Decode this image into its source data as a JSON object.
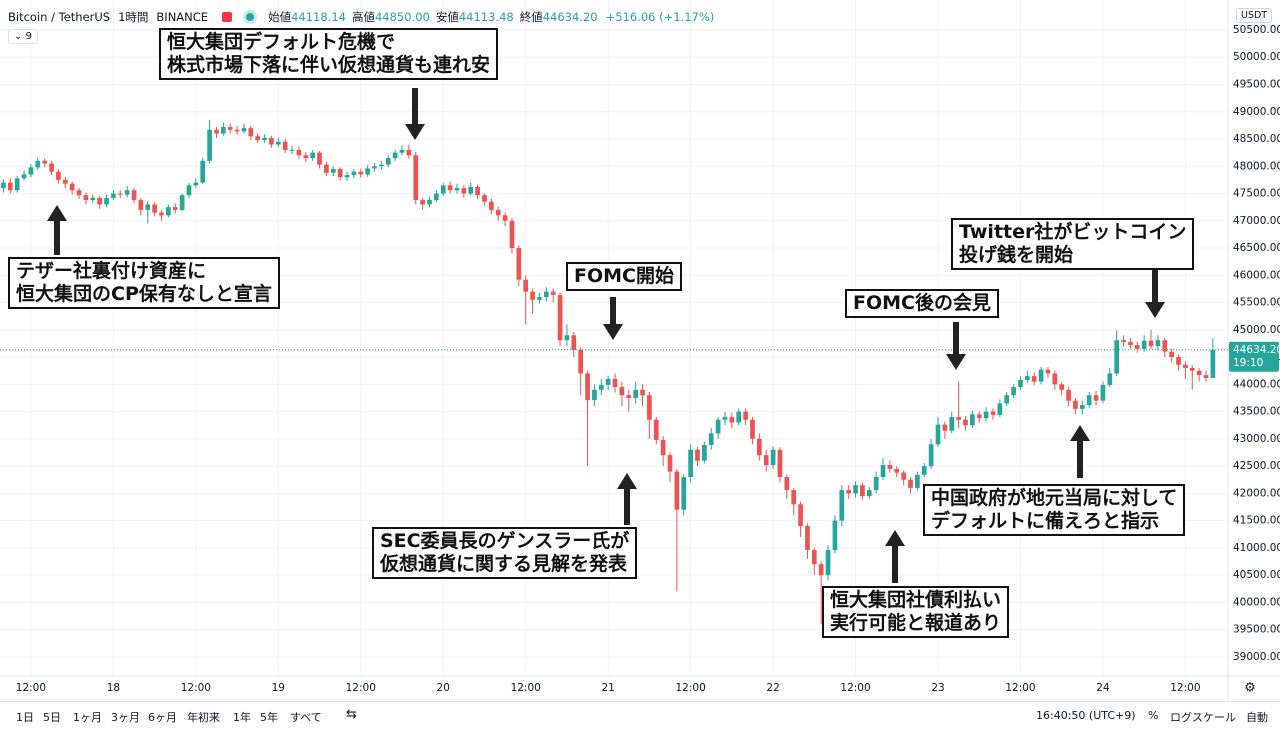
{
  "header": {
    "symbol": "Bitcoin / TetherUS",
    "interval": "1時間",
    "exchange": "BINANCE",
    "ohlc": [
      {
        "label": "始値",
        "value": "44118.14"
      },
      {
        "label": "高値",
        "value": "44850.00"
      },
      {
        "label": "安値",
        "value": "44113.48"
      },
      {
        "label": "終値",
        "value": "44634.20"
      }
    ],
    "change": "+516.06 (+1.17%)",
    "indicator": "9",
    "currency": "USDT"
  },
  "chart_data": {
    "type": "candlestick",
    "up_color": "#26a69a",
    "down_color": "#ef5350",
    "grid": true,
    "open": [
      47600,
      47700,
      47560,
      47780,
      47850,
      47980,
      48100,
      48050,
      47900,
      47750,
      47680,
      47560,
      47470,
      47380,
      47420,
      47300,
      47420,
      47500,
      47480,
      47560,
      47380,
      47200,
      47300,
      47150,
      47100,
      47250,
      47200,
      47470,
      47650,
      47700,
      48100,
      48670,
      48600,
      48720,
      48670,
      48640,
      48700,
      48550,
      48480,
      48520,
      48400,
      48450,
      48300,
      48300,
      48200,
      48150,
      48250,
      48030,
      47880,
      47950,
      47800,
      47840,
      47900,
      47850,
      47960,
      48000,
      48030,
      48150,
      48250,
      48300,
      48200,
      47380,
      47300,
      47380,
      47500,
      47650,
      47560,
      47600,
      47500,
      47620,
      47470,
      47350,
      47200,
      47100,
      47000,
      46500,
      45920,
      45700,
      45550,
      45600,
      45700,
      45640,
      44810,
      44900,
      44630,
      44200,
      43710,
      43900,
      43990,
      44100,
      43950,
      43800,
      43750,
      43900,
      43800,
      43350,
      42980,
      42700,
      42400,
      41700,
      42300,
      42800,
      42600,
      42890,
      43100,
      43350,
      43400,
      43300,
      43500,
      43350,
      43000,
      42700,
      42520,
      42800,
      42300,
      42060,
      41800,
      41400,
      40960,
      40700,
      40500,
      40960,
      41500,
      42060,
      42000,
      42150,
      41950,
      42060,
      42300,
      42520,
      42450,
      42380,
      42250,
      42100,
      42340,
      42500,
      42900,
      43260,
      43150,
      43400,
      43350,
      43250,
      43450,
      43380,
      43500,
      43440,
      43650,
      43800,
      43950,
      44080,
      44150,
      44050,
      44270,
      44200,
      44000,
      43900,
      43700,
      43550,
      43620,
      43800,
      43700,
      43990,
      44200,
      44810,
      44780,
      44720,
      44650,
      44800,
      44700,
      44810,
      44600,
      44500,
      44360,
      44300,
      44250,
      44170,
      44118.14
    ],
    "high": [
      47760,
      47780,
      47820,
      47920,
      48040,
      48160,
      48140,
      48100,
      47950,
      47800,
      47720,
      47600,
      47520,
      47480,
      47460,
      47480,
      47560,
      47560,
      47640,
      47600,
      47420,
      47360,
      47340,
      47200,
      47300,
      47320,
      47500,
      47700,
      47780,
      48160,
      48850,
      48720,
      48800,
      48780,
      48740,
      48780,
      48740,
      48600,
      48580,
      48560,
      48520,
      48500,
      48380,
      48360,
      48260,
      48300,
      48280,
      48080,
      48000,
      47980,
      47900,
      47950,
      47960,
      48020,
      48060,
      48100,
      48200,
      48300,
      48380,
      48400,
      48260,
      47420,
      47440,
      47560,
      47700,
      47720,
      47680,
      47660,
      47700,
      47660,
      47500,
      47400,
      47260,
      47150,
      47050,
      46550,
      46000,
      45760,
      45680,
      45780,
      45760,
      45680,
      45100,
      44960,
      44680,
      44250,
      44000,
      44100,
      44150,
      44200,
      44050,
      43900,
      44050,
      44000,
      43860,
      43400,
      43050,
      42750,
      42450,
      42350,
      42900,
      42850,
      42950,
      43200,
      43400,
      43500,
      43480,
      43560,
      43560,
      43400,
      43100,
      42800,
      42860,
      42850,
      42350,
      42100,
      41850,
      41450,
      41000,
      40750,
      41050,
      41600,
      42150,
      42150,
      42220,
      42200,
      42120,
      42400,
      42650,
      42600,
      42500,
      42420,
      42300,
      42400,
      42560,
      43000,
      43400,
      43320,
      43500,
      44050,
      43420,
      43520,
      43500,
      43580,
      43560,
      43720,
      43860,
      44000,
      44150,
      44250,
      44220,
      44320,
      44320,
      44250,
      44050,
      43950,
      43750,
      43700,
      43860,
      43880,
      44050,
      44300,
      45000,
      44900,
      44850,
      44780,
      44900,
      45000,
      44900,
      44850,
      44650,
      44550,
      44420,
      44350,
      44300,
      44250,
      44850
    ],
    "low": [
      47520,
      47500,
      47520,
      47740,
      47800,
      47930,
      47980,
      47840,
      47680,
      47600,
      47480,
      47400,
      47300,
      47320,
      47220,
      47250,
      47380,
      47420,
      47430,
      47320,
      47100,
      46950,
      47080,
      47000,
      47060,
      47130,
      47180,
      47420,
      47600,
      47680,
      48050,
      48520,
      48560,
      48600,
      48580,
      48600,
      48480,
      48420,
      48430,
      48340,
      48350,
      48240,
      48220,
      48140,
      48080,
      48100,
      47960,
      47820,
      47820,
      47740,
      47740,
      47780,
      47790,
      47800,
      47900,
      47940,
      47980,
      48100,
      48200,
      48140,
      47300,
      47200,
      47250,
      47340,
      47460,
      47500,
      47500,
      47420,
      47460,
      47400,
      47280,
      47120,
      47000,
      46900,
      46400,
      45800,
      45100,
      45300,
      45480,
      45520,
      45500,
      44700,
      44700,
      44500,
      43800,
      42500,
      43600,
      43800,
      43900,
      43850,
      43600,
      43500,
      43650,
      43600,
      43000,
      42900,
      42500,
      42200,
      40200,
      41600,
      42200,
      42500,
      42550,
      42800,
      43000,
      43250,
      43200,
      43250,
      43250,
      42900,
      42600,
      42400,
      42450,
      42200,
      41900,
      41600,
      41200,
      40800,
      40500,
      39600,
      40400,
      40900,
      41400,
      41900,
      41920,
      41880,
      41900,
      42000,
      42250,
      42380,
      42300,
      42150,
      42000,
      42050,
      42300,
      42450,
      42850,
      43000,
      43100,
      43200,
      43150,
      43200,
      43300,
      43320,
      43350,
      43400,
      43600,
      43750,
      43900,
      44020,
      43980,
      44000,
      44120,
      43900,
      43800,
      43600,
      43450,
      43450,
      43560,
      43620,
      43650,
      43950,
      44150,
      44700,
      44650,
      44580,
      44600,
      44650,
      44620,
      44500,
      44400,
      44250,
      44100,
      43900,
      44050,
      44050,
      44113.48
    ],
    "close": [
      47700,
      47560,
      47780,
      47850,
      47980,
      48100,
      48050,
      47900,
      47750,
      47680,
      47560,
      47470,
      47380,
      47420,
      47300,
      47420,
      47500,
      47480,
      47560,
      47380,
      47200,
      47300,
      47150,
      47100,
      47250,
      47200,
      47470,
      47650,
      47700,
      48100,
      48670,
      48600,
      48720,
      48670,
      48640,
      48700,
      48550,
      48480,
      48520,
      48400,
      48450,
      48300,
      48300,
      48200,
      48150,
      48250,
      48030,
      47880,
      47950,
      47800,
      47840,
      47900,
      47850,
      47960,
      48000,
      48030,
      48150,
      48250,
      48300,
      48200,
      47380,
      47300,
      47380,
      47500,
      47650,
      47560,
      47600,
      47500,
      47620,
      47470,
      47350,
      47200,
      47100,
      47000,
      46500,
      45920,
      45700,
      45550,
      45600,
      45700,
      45640,
      44810,
      44900,
      44630,
      44200,
      43710,
      43900,
      43990,
      44100,
      43950,
      43800,
      43750,
      43900,
      43800,
      43350,
      42980,
      42700,
      42400,
      41700,
      42300,
      42800,
      42600,
      42890,
      43100,
      43350,
      43400,
      43300,
      43500,
      43350,
      43000,
      42700,
      42520,
      42800,
      42300,
      42060,
      41800,
      41400,
      40960,
      40700,
      40500,
      40960,
      41500,
      42060,
      42000,
      42150,
      41950,
      42060,
      42300,
      42520,
      42450,
      42380,
      42250,
      42100,
      42340,
      42500,
      42900,
      43260,
      43150,
      43400,
      43350,
      43250,
      43450,
      43380,
      43500,
      43440,
      43650,
      43800,
      43950,
      44080,
      44150,
      44050,
      44270,
      44200,
      44000,
      43900,
      43700,
      43550,
      43620,
      43800,
      43700,
      43990,
      44200,
      44810,
      44780,
      44720,
      44650,
      44800,
      44700,
      44810,
      44600,
      44500,
      44360,
      44300,
      44250,
      44170,
      44118.14,
      44634.2
    ],
    "last_price_label": "44634.20",
    "countdown": "19:10",
    "xlim": [
      -0.5,
      178.2
    ],
    "xticks": [
      {
        "value": 4,
        "label": "12:00"
      },
      {
        "value": 16,
        "label": "18"
      },
      {
        "value": 28,
        "label": "12:00"
      },
      {
        "value": 40,
        "label": "19"
      },
      {
        "value": 52,
        "label": "12:00"
      },
      {
        "value": 64,
        "label": "20"
      },
      {
        "value": 76,
        "label": "12:00"
      },
      {
        "value": 88,
        "label": "21"
      },
      {
        "value": 100,
        "label": "12:00"
      },
      {
        "value": 112,
        "label": "22"
      },
      {
        "value": 124,
        "label": "12:00"
      },
      {
        "value": 136,
        "label": "23"
      },
      {
        "value": 148,
        "label": "12:00"
      },
      {
        "value": 160,
        "label": "24"
      },
      {
        "value": 172,
        "label": "12:00"
      }
    ],
    "ylim": [
      38650,
      51050
    ],
    "yticks": [
      {
        "value": 39000,
        "label": "39000.00"
      },
      {
        "value": 39500,
        "label": "39500.00"
      },
      {
        "value": 40000,
        "label": "40000.00"
      },
      {
        "value": 40500,
        "label": "40500.00"
      },
      {
        "value": 41000,
        "label": "41000.00"
      },
      {
        "value": 41500,
        "label": "41500.00"
      },
      {
        "value": 42000,
        "label": "42000.00"
      },
      {
        "value": 42500,
        "label": "42500.00"
      },
      {
        "value": 43000,
        "label": "43000.00"
      },
      {
        "value": 43500,
        "label": "43500.00"
      },
      {
        "value": 44000,
        "label": "44000.00"
      },
      {
        "value": 44500,
        "label": "44500.00"
      },
      {
        "value": 45000,
        "label": "45000.00"
      },
      {
        "value": 45500,
        "label": "45500.00"
      },
      {
        "value": 46000,
        "label": "46000.00"
      },
      {
        "value": 46500,
        "label": "46500.00"
      },
      {
        "value": 47000,
        "label": "47000.00"
      },
      {
        "value": 47500,
        "label": "47500.00"
      },
      {
        "value": 48000,
        "label": "48000.00"
      },
      {
        "value": 48500,
        "label": "48500.00"
      },
      {
        "value": 49000,
        "label": "49000.00"
      },
      {
        "value": 49500,
        "label": "49500.00"
      },
      {
        "value": 50000,
        "label": "50000.00"
      },
      {
        "value": 50500,
        "label": "50500.00"
      }
    ],
    "annotations": [
      {
        "lines": [
          "恒大集団デフォルト危機で",
          "株式市場下落に伴い仮想通貨も連れ安"
        ]
      },
      {
        "lines": [
          "テザー社裏付け資産に",
          "恒大集団のCP保有なしと宣言"
        ]
      },
      {
        "lines": [
          "FOMC開始"
        ]
      },
      {
        "lines": [
          "SEC委員長のゲンスラー氏が",
          "仮想通貨に関する見解を発表"
        ]
      },
      {
        "lines": [
          "FOMC後の会見"
        ]
      },
      {
        "lines": [
          "恒大集団社債利払い",
          "実行可能と報道あり"
        ]
      },
      {
        "lines": [
          "Twitter社がビットコイン",
          "投げ銭を開始"
        ]
      },
      {
        "lines": [
          "中国政府が地元当局に対して",
          "デフォルトに備えろと指示"
        ]
      }
    ]
  },
  "toolbar": {
    "ranges": [
      "1日",
      "5日",
      "1ヶ月",
      "3ヶ月",
      "6ヶ月",
      "年初来",
      "1年",
      "5年",
      "すべて"
    ],
    "time": "16:40:50 (UTC+9)",
    "percent": "%",
    "log": "ログスケール",
    "auto": "自動"
  }
}
